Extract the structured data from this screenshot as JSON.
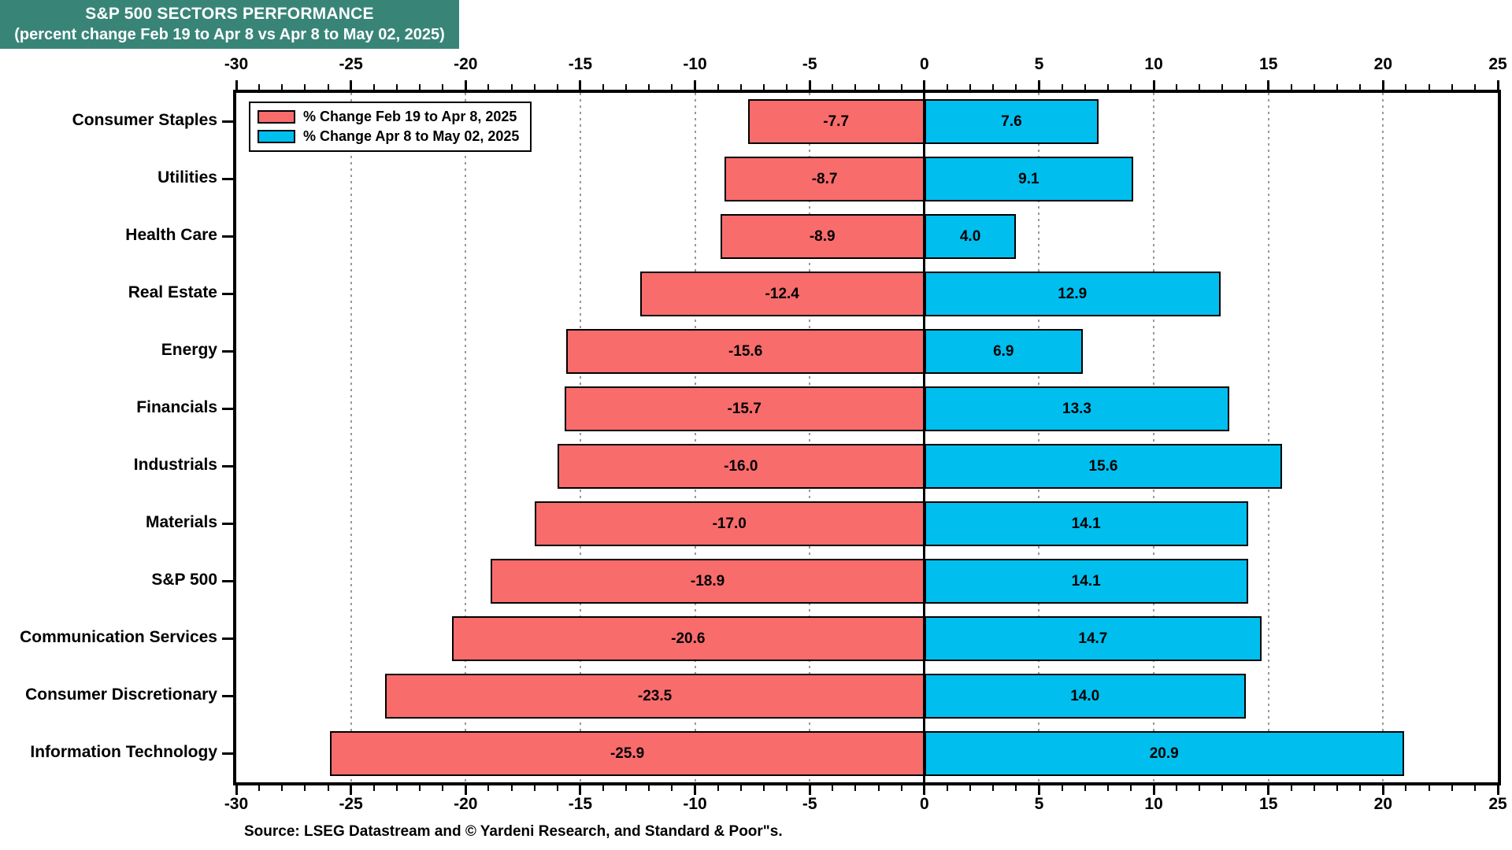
{
  "title": {
    "line1": "S&P 500 SECTORS PERFORMANCE",
    "line2": "(percent change Feb 19 to Apr 8 vs Apr 8 to May 02, 2025)"
  },
  "source": "Source: LSEG Datastream and © Yardeni Research, and Standard & Poor\"s.",
  "colors": {
    "title_bg": "#388578",
    "title_text": "#ffffff",
    "bar_negative": "#F96C6C",
    "bar_positive": "#00BFEF",
    "gridline": "#999999",
    "axis": "#000000"
  },
  "chart_data": {
    "type": "bar",
    "orientation": "horizontal",
    "title": "S&P 500 SECTORS PERFORMANCE",
    "subtitle": "(percent change Feb 19 to Apr 8 vs Apr 8 to May 02, 2025)",
    "categories": [
      "Consumer Staples",
      "Utilities",
      "Health Care",
      "Real Estate",
      "Energy",
      "Financials",
      "Industrials",
      "Materials",
      "S&P 500",
      "Communication Services",
      "Consumer Discretionary",
      "Information Technology"
    ],
    "series": [
      {
        "name": "% Change Feb 19 to Apr 8, 2025",
        "color": "#F96C6C",
        "values": [
          -7.7,
          -8.7,
          -8.9,
          -12.4,
          -15.6,
          -15.7,
          -16.0,
          -17.0,
          -18.9,
          -20.6,
          -23.5,
          -25.9
        ]
      },
      {
        "name": "% Change Apr 8 to May 02, 2025",
        "color": "#00BFEF",
        "values": [
          7.6,
          9.1,
          4.0,
          12.9,
          6.9,
          13.3,
          15.6,
          14.1,
          14.1,
          14.7,
          14.0,
          20.9
        ]
      }
    ],
    "xlim": [
      -30,
      25
    ],
    "x_ticks": [
      -30,
      -25,
      -20,
      -15,
      -10,
      -5,
      0,
      5,
      10,
      15,
      20,
      25
    ],
    "minor_tick_step": 1,
    "value_labels_decimals": 1,
    "grid": "dotted vertical gridlines at major ticks, solid black line at zero",
    "legend_position": "top-left inside plot",
    "axis_labels_position": "top and bottom"
  }
}
